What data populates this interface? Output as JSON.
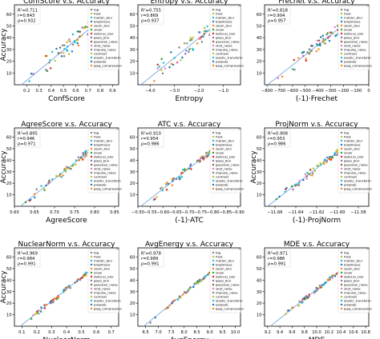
{
  "legend_labels": [
    "fog",
    "frost",
    "motion_blur",
    "brightness",
    "zoom_blur",
    "snow",
    "defocus_blur",
    "glass_blur",
    "gaussian_noise",
    "shot_noise",
    "impulse_noise",
    "contrast",
    "elastic_transform",
    "pixelate",
    "jpeg_compression"
  ],
  "legend_colors": [
    "#7f7f7f",
    "#bcbd22",
    "#17becf",
    "#1f77b4",
    "#ff7f0e",
    "#2ca02c",
    "#d62728",
    "#9467bd",
    "#8c564b",
    "#e377c2",
    "#7f7f7f",
    "#bcbd22",
    "#17becf",
    "#1f77b4",
    "#ff7f0e"
  ],
  "fit_line_color": "#7aa6e0",
  "ylabel": "Accuracy",
  "chart_data": [
    {
      "type": "scatter",
      "title": "ConfScore v.s. Accuracy",
      "xlabel": "ConfScore",
      "ylabel": "Accuracy",
      "stats": [
        "R²=0.711",
        "r=0.843",
        "ρ=0.932"
      ],
      "xlim": [
        0.1,
        0.95
      ],
      "ylim": [
        0,
        68
      ],
      "xticks": [
        0.2,
        0.3,
        0.4,
        0.5,
        0.6,
        0.7,
        0.8,
        0.9
      ],
      "xticklabels": [
        "0.2",
        "0.3",
        "0.4",
        "0.5",
        "0.6",
        "0.7",
        "0.8",
        "0.9"
      ],
      "yticks": [
        10,
        20,
        30,
        40,
        50,
        60
      ],
      "yticklabels": [
        "10",
        "20",
        "30",
        "40",
        "50",
        "60"
      ],
      "stats_pos": "top-left",
      "legend_pos": "right",
      "line": [
        [
          0.1,
          -5
        ],
        [
          0.95,
          68
        ]
      ]
    },
    {
      "type": "scatter",
      "title": "Entropy v.s. Accuracy",
      "xlabel": "Entropy",
      "ylabel": "",
      "stats": [
        "R²=0.755",
        "r=0.869",
        "ρ=0.937"
      ],
      "xlim": [
        -4.5,
        -0.3
      ],
      "ylim": [
        0,
        68
      ],
      "xticks": [
        -4,
        -3,
        -2,
        -1
      ],
      "xticklabels": [
        "−4.0",
        "−3.0",
        "−2.0",
        "−1.0"
      ],
      "yticks": [
        10,
        20,
        30,
        40,
        50,
        60
      ],
      "yticklabels": [
        "10",
        "20",
        "30",
        "40",
        "50",
        "60"
      ],
      "stats_pos": "top-left",
      "legend_pos": "right",
      "line": [
        [
          -4.5,
          -2
        ],
        [
          -0.3,
          68
        ]
      ]
    },
    {
      "type": "scatter",
      "title": "Frechet v.s. Accuracy",
      "xlabel": "(-1)·Frechet",
      "ylabel": "",
      "stats": [
        "R²=0.818",
        "r=0.904",
        "ρ=0.957"
      ],
      "xlim": [
        -820,
        0
      ],
      "ylim": [
        0,
        68
      ],
      "xticks": [
        -800,
        -700,
        -600,
        -500,
        -400,
        -300,
        -200,
        -100,
        0
      ],
      "xticklabels": [
        "−800",
        "−700",
        "−600",
        "−500",
        "−400",
        "−300",
        "−200",
        "−100",
        "0"
      ],
      "yticks": [
        10,
        20,
        30,
        40,
        50,
        60
      ],
      "yticklabels": [
        "10",
        "20",
        "30",
        "40",
        "50",
        "60"
      ],
      "stats_pos": "top-left",
      "legend_pos": "right",
      "line": [
        [
          -820,
          -2
        ],
        [
          0,
          68
        ]
      ]
    },
    {
      "type": "scatter",
      "title": "AgreeScore v.s. Accuracy",
      "xlabel": "AgreeScore",
      "ylabel": "Accuracy",
      "stats": [
        "R²=0.895",
        "r=0.946",
        "ρ=0.971"
      ],
      "xlim": [
        0.6,
        0.86
      ],
      "ylim": [
        0,
        68
      ],
      "xticks": [
        0.6,
        0.65,
        0.7,
        0.75,
        0.8,
        0.85
      ],
      "xticklabels": [
        "0.60",
        "0.65",
        "0.70",
        "0.75",
        "0.80",
        "0.85"
      ],
      "yticks": [
        10,
        20,
        30,
        40,
        50,
        60
      ],
      "yticklabels": [
        "10",
        "20",
        "30",
        "40",
        "50",
        "60"
      ],
      "stats_pos": "top-left",
      "legend_pos": "right",
      "line": [
        [
          0.6,
          -4
        ],
        [
          0.86,
          68
        ]
      ]
    },
    {
      "type": "scatter",
      "title": "ATC v.s. Accuracy",
      "xlabel": "(-1)·ATC",
      "ylabel": "",
      "stats": [
        "R²=0.910",
        "r=0.954",
        "ρ=0.986"
      ],
      "xlim": [
        -0.5,
        -0.91
      ],
      "ylim": [
        0,
        68
      ],
      "xticks": [
        -0.5,
        -0.55,
        -0.6,
        -0.65,
        -0.7,
        -0.75,
        -0.8,
        -0.85,
        -0.9
      ],
      "xticklabels": [
        "−0.50",
        "−0.55",
        "−0.60",
        "−0.65",
        "−0.70",
        "−0.75",
        "−0.80",
        "−0.85",
        "−0.90"
      ],
      "yticks": [
        10,
        20,
        30,
        40,
        50,
        60
      ],
      "yticklabels": [
        "10",
        "20",
        "30",
        "40",
        "50",
        "60"
      ],
      "stats_pos": "top-left",
      "legend_pos": "right",
      "line": [
        [
          -0.5,
          -2
        ],
        [
          -0.91,
          68
        ]
      ]
    },
    {
      "type": "scatter",
      "title": "ProjNorm v.s. Accuracy",
      "xlabel": "(-1)·ProjNorm",
      "ylabel": "Accuracy",
      "stats": [
        "R²=0.908",
        "r=0.953",
        "ρ=0.986"
      ],
      "xlim": [
        -11.67,
        -11.57
      ],
      "ylim": [
        0,
        68
      ],
      "xticks": [
        -11.66,
        -11.64,
        -11.62,
        -11.6,
        -11.58
      ],
      "xticklabels": [
        "−11.66",
        "−11.64",
        "−11.62",
        "−11.60",
        "−11.58"
      ],
      "yticks": [
        10,
        20,
        30,
        40,
        50,
        60
      ],
      "yticklabels": [
        "10",
        "20",
        "30",
        "40",
        "50",
        "60"
      ],
      "stats_pos": "top-left",
      "legend_pos": "right",
      "line": [
        [
          -11.67,
          -2
        ],
        [
          -11.57,
          68
        ]
      ]
    },
    {
      "type": "scatter",
      "title": "NuclearNorm v.s. Accuracy",
      "xlabel": "NuclearNorm",
      "ylabel": "Accuracy",
      "stats": [
        "R²=0.969",
        "r=0.984",
        "ρ=0.991"
      ],
      "xlim": [
        0.05,
        0.75
      ],
      "ylim": [
        0,
        68
      ],
      "xticks": [
        0.1,
        0.2,
        0.3,
        0.4,
        0.5,
        0.6,
        0.7
      ],
      "xticklabels": [
        "0.1",
        "0.2",
        "0.3",
        "0.4",
        "0.5",
        "0.6",
        "0.7"
      ],
      "yticks": [
        10,
        20,
        30,
        40,
        50,
        60
      ],
      "yticklabels": [
        "10",
        "20",
        "30",
        "40",
        "50",
        "60"
      ],
      "stats_pos": "top-left",
      "legend_pos": "right",
      "line": [
        [
          0.05,
          -4
        ],
        [
          0.75,
          68
        ]
      ]
    },
    {
      "type": "scatter",
      "title": "AvgEnergy v.s. Accuracy",
      "xlabel": "AvgEnergy",
      "ylabel": "",
      "stats": [
        "R²=0.978",
        "r=0.989",
        "ρ=0.991"
      ],
      "xlim": [
        6.2,
        10.2
      ],
      "ylim": [
        0,
        68
      ],
      "xticks": [
        6.5,
        7.0,
        7.5,
        8.0,
        8.5,
        9.0,
        9.5,
        10.0
      ],
      "xticklabels": [
        "6.5",
        "7.0",
        "7.5",
        "8.0",
        "8.5",
        "9.0",
        "9.5",
        "10.0"
      ],
      "yticks": [
        10,
        20,
        30,
        40,
        50,
        60
      ],
      "yticklabels": [
        "10",
        "20",
        "30",
        "40",
        "50",
        "60"
      ],
      "stats_pos": "top-left",
      "legend_pos": "right",
      "line": [
        [
          6.2,
          -4
        ],
        [
          10.2,
          68
        ]
      ]
    },
    {
      "type": "scatter",
      "title": "MDE v.s. Accuracy",
      "xlabel": "MDE",
      "ylabel": "",
      "stats": [
        "R²=0.971",
        "r=0.986",
        "ρ=0.991"
      ],
      "xlim": [
        9.15,
        10.85
      ],
      "ylim": [
        0,
        68
      ],
      "xticks": [
        9.2,
        9.4,
        9.6,
        9.8,
        10.0,
        10.2,
        10.4,
        10.6,
        10.8
      ],
      "xticklabels": [
        "9.2",
        "9.4",
        "9.6",
        "9.8",
        "10.0",
        "10.2",
        "10.4",
        "10.6",
        "10.8"
      ],
      "yticks": [
        10,
        20,
        30,
        40,
        50,
        60
      ],
      "yticklabels": [
        "10",
        "20",
        "30",
        "40",
        "50",
        "60"
      ],
      "stats_pos": "top-left",
      "legend_pos": "right",
      "line": [
        [
          9.15,
          -4
        ],
        [
          10.85,
          68
        ]
      ]
    }
  ]
}
